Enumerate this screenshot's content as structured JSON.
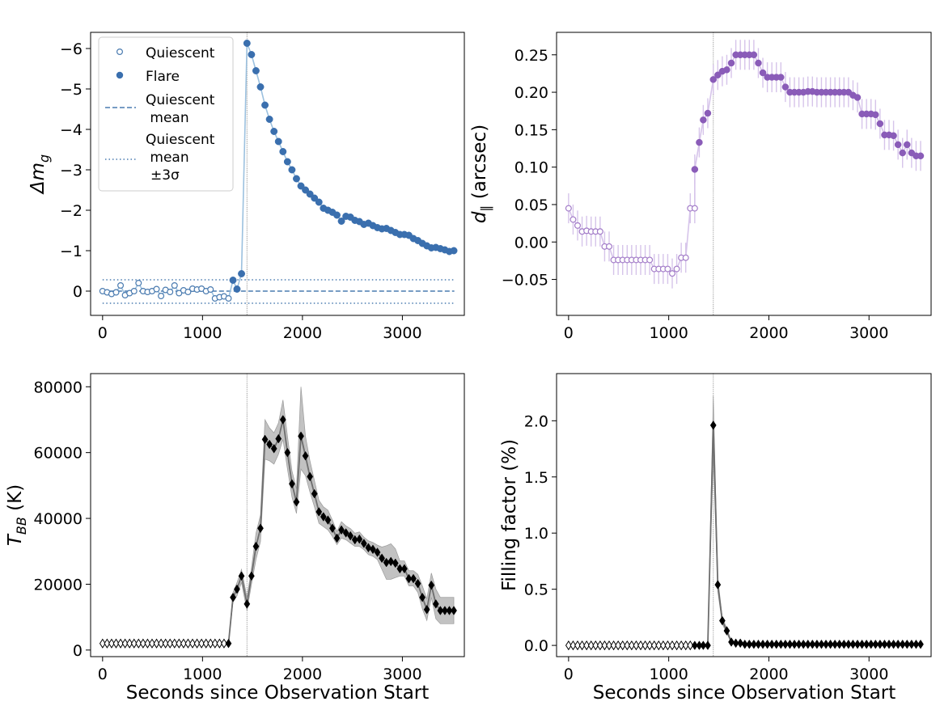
{
  "colors": {
    "quiescent": "#4a7bb0",
    "flare": "#3a6fae",
    "flare_line": "#9cc1df",
    "dpar_open": "#a27bc8",
    "dpar_filled": "#8a5cb8",
    "dpar_err": "#d6c4ea",
    "black": "#000000",
    "band": "#c2c2c2",
    "vline": "#999999"
  },
  "x_axis_label": "Seconds since Observation Start",
  "chart_data": [
    {
      "id": "dm",
      "type": "scatter",
      "ylabel": "Δm_g",
      "ylabel_main": "Δm",
      "ylabel_sub": "g",
      "xlim": [
        -120,
        3620
      ],
      "ylim": [
        0.6,
        -6.4
      ],
      "y_inverted": true,
      "xticks": [
        0,
        1000,
        2000,
        3000
      ],
      "yticks": [
        0,
        -1,
        -2,
        -3,
        -4,
        -5,
        -6
      ],
      "ytick_labels": [
        "0",
        "−1",
        "−2",
        "−3",
        "−4",
        "−5",
        "−6"
      ],
      "flare_start_vline": 1445,
      "legend": {
        "position": "upper left",
        "entries": [
          "Quiescent",
          "Flare",
          "Quiescent mean",
          "Quiescent mean ±3σ"
        ]
      },
      "quiescent_mean": 0.0,
      "quiescent_sigma3": [
        0.3,
        -0.28
      ],
      "quiescent": {
        "x": [
          0,
          45,
          90,
          135,
          180,
          225,
          270,
          315,
          360,
          405,
          450,
          495,
          540,
          585,
          630,
          675,
          720,
          765,
          810,
          855,
          900,
          945,
          990,
          1035,
          1080,
          1125,
          1170,
          1215,
          1260
        ],
        "y": [
          0.0,
          0.03,
          0.07,
          0.03,
          -0.14,
          0.1,
          0.05,
          0.0,
          -0.2,
          0.0,
          0.02,
          0.0,
          -0.05,
          0.12,
          -0.03,
          0.02,
          -0.14,
          0.05,
          -0.02,
          0.02,
          -0.06,
          -0.04,
          -0.06,
          0.0,
          -0.04,
          0.18,
          0.15,
          0.13,
          0.18
        ]
      },
      "flare": {
        "x": [
          1305,
          1345,
          1390,
          1445,
          1490,
          1535,
          1580,
          1625,
          1670,
          1715,
          1760,
          1805,
          1850,
          1895,
          1940,
          1985,
          2030,
          2075,
          2120,
          2165,
          2210,
          2255,
          2300,
          2345,
          2390,
          2435,
          2480,
          2525,
          2570,
          2615,
          2660,
          2705,
          2750,
          2795,
          2840,
          2885,
          2930,
          2975,
          3020,
          3065,
          3110,
          3155,
          3200,
          3245,
          3290,
          3335,
          3380,
          3425,
          3470,
          3515
        ],
        "y": [
          -0.27,
          -0.05,
          -0.43,
          -6.13,
          -5.85,
          -5.45,
          -5.05,
          -4.6,
          -4.25,
          -3.95,
          -3.7,
          -3.45,
          -3.2,
          -3.0,
          -2.78,
          -2.6,
          -2.5,
          -2.4,
          -2.3,
          -2.2,
          -2.05,
          -2.0,
          -1.95,
          -1.88,
          -1.73,
          -1.85,
          -1.83,
          -1.75,
          -1.72,
          -1.65,
          -1.68,
          -1.62,
          -1.57,
          -1.54,
          -1.55,
          -1.5,
          -1.45,
          -1.4,
          -1.4,
          -1.38,
          -1.3,
          -1.25,
          -1.18,
          -1.12,
          -1.07,
          -1.08,
          -1.05,
          -1.02,
          -0.98,
          -1.0
        ]
      }
    },
    {
      "id": "dpar",
      "type": "scatter",
      "ylabel": "d_∥ (arcsec)",
      "ylabel_main": "d",
      "ylabel_sub": "∥",
      "ylabel_tail": " (arcsec)",
      "xlim": [
        -120,
        3620
      ],
      "ylim": [
        -0.098,
        0.28
      ],
      "xticks": [
        0,
        1000,
        2000,
        3000
      ],
      "yticks": [
        -0.05,
        0.0,
        0.05,
        0.1,
        0.15,
        0.2,
        0.25
      ],
      "ytick_labels": [
        "−0.05",
        "0.00",
        "0.05",
        "0.10",
        "0.15",
        "0.20",
        "0.25"
      ],
      "flare_start_vline": 1445,
      "error": 0.02,
      "quiescent": {
        "x": [
          0,
          45,
          90,
          135,
          180,
          225,
          270,
          315,
          360,
          405,
          450,
          495,
          540,
          585,
          630,
          675,
          720,
          765,
          810,
          855,
          900,
          945,
          990,
          1035,
          1080,
          1125,
          1170,
          1215,
          1260
        ],
        "y": [
          0.045,
          0.03,
          0.022,
          0.014,
          0.015,
          0.014,
          0.014,
          0.014,
          -0.006,
          -0.006,
          -0.024,
          -0.024,
          -0.024,
          -0.024,
          -0.024,
          -0.024,
          -0.024,
          -0.024,
          -0.024,
          -0.036,
          -0.036,
          -0.036,
          -0.036,
          -0.042,
          -0.036,
          -0.021,
          -0.021,
          0.045,
          0.045
        ]
      },
      "flare": {
        "x": [
          1260,
          1305,
          1345,
          1390,
          1445,
          1490,
          1535,
          1580,
          1625,
          1670,
          1715,
          1760,
          1805,
          1850,
          1895,
          1940,
          1985,
          2030,
          2075,
          2120,
          2165,
          2210,
          2255,
          2300,
          2345,
          2390,
          2435,
          2480,
          2525,
          2570,
          2615,
          2660,
          2705,
          2750,
          2795,
          2840,
          2885,
          2930,
          2975,
          3020,
          3065,
          3110,
          3155,
          3200,
          3245,
          3290,
          3335,
          3380,
          3425,
          3470,
          3515
        ],
        "y": [
          0.097,
          0.133,
          0.163,
          0.172,
          0.217,
          0.223,
          0.228,
          0.23,
          0.239,
          0.25,
          0.25,
          0.25,
          0.25,
          0.25,
          0.239,
          0.226,
          0.22,
          0.22,
          0.22,
          0.22,
          0.207,
          0.2,
          0.2,
          0.2,
          0.2,
          0.201,
          0.201,
          0.2,
          0.2,
          0.2,
          0.2,
          0.2,
          0.2,
          0.2,
          0.2,
          0.196,
          0.193,
          0.171,
          0.171,
          0.171,
          0.17,
          0.158,
          0.143,
          0.143,
          0.142,
          0.13,
          0.119,
          0.13,
          0.119,
          0.115,
          0.115
        ]
      }
    },
    {
      "id": "tbb",
      "type": "line",
      "ylabel": "T_BB (K)",
      "ylabel_main": "T",
      "ylabel_sub": "BB",
      "ylabel_tail": " (K)",
      "xlim": [
        -120,
        3620
      ],
      "ylim": [
        -2000,
        84000
      ],
      "xticks": [
        0,
        1000,
        2000,
        3000
      ],
      "yticks": [
        0,
        20000,
        40000,
        60000,
        80000
      ],
      "ytick_labels": [
        "0",
        "20000",
        "40000",
        "60000",
        "80000"
      ],
      "flare_start_vline": 1445,
      "quiescent": {
        "x": [
          0,
          45,
          90,
          135,
          180,
          225,
          270,
          315,
          360,
          405,
          450,
          495,
          540,
          585,
          630,
          675,
          720,
          765,
          810,
          855,
          900,
          945,
          990,
          1035,
          1080,
          1125,
          1170,
          1215
        ],
        "y": [
          2000,
          2000,
          2000,
          2000,
          2000,
          2000,
          2000,
          2000,
          2000,
          2000,
          2000,
          2000,
          2000,
          2000,
          2000,
          2000,
          2000,
          2000,
          2000,
          2000,
          2000,
          2000,
          2000,
          2000,
          2000,
          2000,
          2000,
          2000
        ]
      },
      "flare": {
        "x": [
          1260,
          1305,
          1345,
          1390,
          1445,
          1490,
          1535,
          1580,
          1625,
          1670,
          1715,
          1760,
          1805,
          1850,
          1895,
          1940,
          1985,
          2030,
          2075,
          2120,
          2165,
          2210,
          2255,
          2300,
          2345,
          2390,
          2435,
          2480,
          2525,
          2570,
          2615,
          2660,
          2705,
          2750,
          2795,
          2840,
          2885,
          2930,
          2975,
          3020,
          3065,
          3110,
          3155,
          3200,
          3245,
          3290,
          3335,
          3380,
          3425,
          3470,
          3515
        ],
        "y": [
          2000,
          16000,
          18500,
          22500,
          14000,
          22500,
          31500,
          37000,
          64000,
          62500,
          61200,
          64200,
          70000,
          60000,
          50500,
          45000,
          65000,
          59000,
          52700,
          47500,
          42000,
          40500,
          39500,
          37000,
          34000,
          36500,
          35600,
          34700,
          33500,
          33700,
          32400,
          31100,
          30600,
          29700,
          27900,
          26600,
          26900,
          26400,
          24700,
          24700,
          21700,
          21700,
          20200,
          16000,
          12300,
          19700,
          14000,
          12000,
          12000,
          12000,
          12000
        ],
        "lower": [
          2000,
          14500,
          16500,
          20500,
          12000,
          20000,
          27500,
          33000,
          58000,
          57500,
          56500,
          59500,
          64000,
          55000,
          46500,
          41500,
          55000,
          53000,
          48000,
          43500,
          38500,
          37500,
          36500,
          34500,
          32000,
          34000,
          33500,
          32500,
          31500,
          31500,
          30500,
          29000,
          28500,
          27500,
          24500,
          21500,
          21500,
          22000,
          22500,
          22500,
          19500,
          19500,
          17500,
          12500,
          9000,
          16000,
          9500,
          8000,
          8000,
          8000,
          8000
        ],
        "upper": [
          2000,
          17500,
          20500,
          24500,
          16000,
          25000,
          35500,
          41000,
          70000,
          67500,
          66000,
          69000,
          76000,
          65000,
          54500,
          49000,
          80000,
          65000,
          57500,
          51500,
          45500,
          43500,
          42500,
          39500,
          36000,
          39000,
          37700,
          36900,
          35500,
          35900,
          34300,
          33200,
          32700,
          31900,
          31300,
          31700,
          32300,
          30800,
          27100,
          27100,
          24100,
          24100,
          23000,
          19500,
          15600,
          23400,
          18500,
          16000,
          16000,
          16000,
          16000
        ]
      }
    },
    {
      "id": "ff",
      "type": "line",
      "ylabel": "Filling factor (%)",
      "xlim": [
        -120,
        3620
      ],
      "ylim": [
        -0.1,
        2.42
      ],
      "xticks": [
        0,
        1000,
        2000,
        3000
      ],
      "yticks": [
        0.0,
        0.5,
        1.0,
        1.5,
        2.0
      ],
      "ytick_labels": [
        "0.0",
        "0.5",
        "1.0",
        "1.5",
        "2.0"
      ],
      "flare_start_vline": 1445,
      "quiescent": {
        "x": [
          0,
          45,
          90,
          135,
          180,
          225,
          270,
          315,
          360,
          405,
          450,
          495,
          540,
          585,
          630,
          675,
          720,
          765,
          810,
          855,
          900,
          945,
          990,
          1035,
          1080,
          1125,
          1170,
          1215
        ],
        "y": [
          0,
          0,
          0,
          0,
          0,
          0,
          0,
          0,
          0,
          0,
          0,
          0,
          0,
          0,
          0,
          0,
          0,
          0,
          0,
          0,
          0,
          0,
          0,
          0,
          0,
          0,
          0,
          0
        ]
      },
      "flare": {
        "x": [
          1260,
          1305,
          1345,
          1390,
          1445,
          1490,
          1535,
          1580,
          1625,
          1670,
          1715,
          1760,
          1805,
          1850,
          1895,
          1940,
          1985,
          2030,
          2075,
          2120,
          2165,
          2210,
          2255,
          2300,
          2345,
          2390,
          2435,
          2480,
          2525,
          2570,
          2615,
          2660,
          2705,
          2750,
          2795,
          2840,
          2885,
          2930,
          2975,
          3020,
          3065,
          3110,
          3155,
          3200,
          3245,
          3290,
          3335,
          3380,
          3425,
          3470,
          3515
        ],
        "y": [
          0.0,
          0.0,
          0.0,
          0.0,
          1.96,
          0.54,
          0.22,
          0.13,
          0.03,
          0.02,
          0.02,
          0.01,
          0.01,
          0.01,
          0.01,
          0.01,
          0.01,
          0.01,
          0.01,
          0.01,
          0.01,
          0.01,
          0.01,
          0.01,
          0.01,
          0.01,
          0.01,
          0.01,
          0.01,
          0.01,
          0.01,
          0.01,
          0.01,
          0.01,
          0.01,
          0.01,
          0.01,
          0.01,
          0.01,
          0.01,
          0.01,
          0.01,
          0.01,
          0.01,
          0.01,
          0.01,
          0.01,
          0.01,
          0.01,
          0.01,
          0.01
        ],
        "lower": [
          0.0,
          0.0,
          0.0,
          0.0,
          1.7,
          0.48,
          0.19,
          0.11,
          0.02,
          0.01,
          0.01,
          0.0,
          0.0,
          0.0,
          0.0,
          0.0,
          0.0,
          0.0,
          0.0,
          0.0,
          0.0,
          0.0,
          0.0,
          0.0,
          0.0,
          0.0,
          0.0,
          0.0,
          0.0,
          0.0,
          0.0,
          0.0,
          0.0,
          0.0,
          0.0,
          0.0,
          0.0,
          0.0,
          0.0,
          0.0,
          0.0,
          0.0,
          0.0,
          0.0,
          0.0,
          0.0,
          0.0,
          0.0,
          0.0,
          0.0,
          0.0
        ],
        "upper": [
          0.0,
          0.0,
          0.0,
          0.0,
          2.22,
          0.6,
          0.25,
          0.15,
          0.04,
          0.03,
          0.03,
          0.02,
          0.02,
          0.02,
          0.02,
          0.02,
          0.02,
          0.02,
          0.02,
          0.02,
          0.02,
          0.02,
          0.02,
          0.02,
          0.02,
          0.02,
          0.02,
          0.02,
          0.02,
          0.02,
          0.02,
          0.02,
          0.02,
          0.02,
          0.02,
          0.02,
          0.02,
          0.02,
          0.02,
          0.02,
          0.02,
          0.02,
          0.02,
          0.02,
          0.02,
          0.02,
          0.02,
          0.02,
          0.02,
          0.02,
          0.02
        ]
      }
    }
  ]
}
